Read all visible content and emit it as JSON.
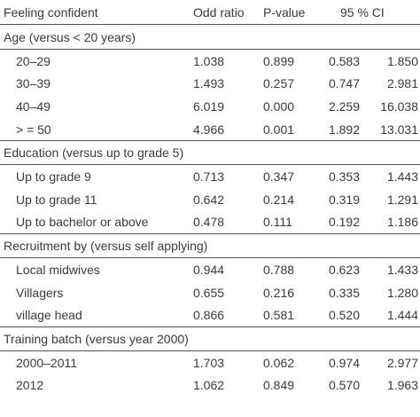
{
  "table": {
    "header": [
      "Feeling confident",
      "Odd ratio",
      "P-value",
      "95 % CI"
    ],
    "sections": [
      {
        "heading": "Age (versus < 20 years)",
        "rows": [
          [
            "20–29",
            "1.038",
            "0.899",
            "0.583",
            "1.850"
          ],
          [
            "30–39",
            "1.493",
            "0.257",
            "0.747",
            "2.981"
          ],
          [
            "40–49",
            "6.019",
            "0.000",
            "2.259",
            "16.038"
          ],
          [
            "> = 50",
            "4.966",
            "0.001",
            "1.892",
            "13.031"
          ]
        ]
      },
      {
        "heading": "Education (versus up to grade 5)",
        "rows": [
          [
            "Up to grade 9",
            "0.713",
            "0.347",
            "0.353",
            "1.443"
          ],
          [
            "Up to grade 11",
            "0.642",
            "0.214",
            "0.319",
            "1.291"
          ],
          [
            "Up to bachelor or above",
            "0.478",
            "0.111",
            "0.192",
            "1.186"
          ]
        ]
      },
      {
        "heading": "Recruitment by (versus self applying)",
        "rows": [
          [
            "Local midwives",
            "0.944",
            "0.788",
            "0.623",
            "1.433"
          ],
          [
            "Villagers",
            "0.655",
            "0.216",
            "0.335",
            "1.280"
          ],
          [
            "village head",
            "0.866",
            "0.581",
            "0.520",
            "1.444"
          ]
        ]
      },
      {
        "heading": "Training batch (versus year 2000)",
        "rows": [
          [
            "2000–2011",
            "1.703",
            "0.062",
            "0.974",
            "2.977"
          ],
          [
            "2012",
            "1.062",
            "0.849",
            "0.570",
            "1.963"
          ]
        ]
      }
    ]
  }
}
